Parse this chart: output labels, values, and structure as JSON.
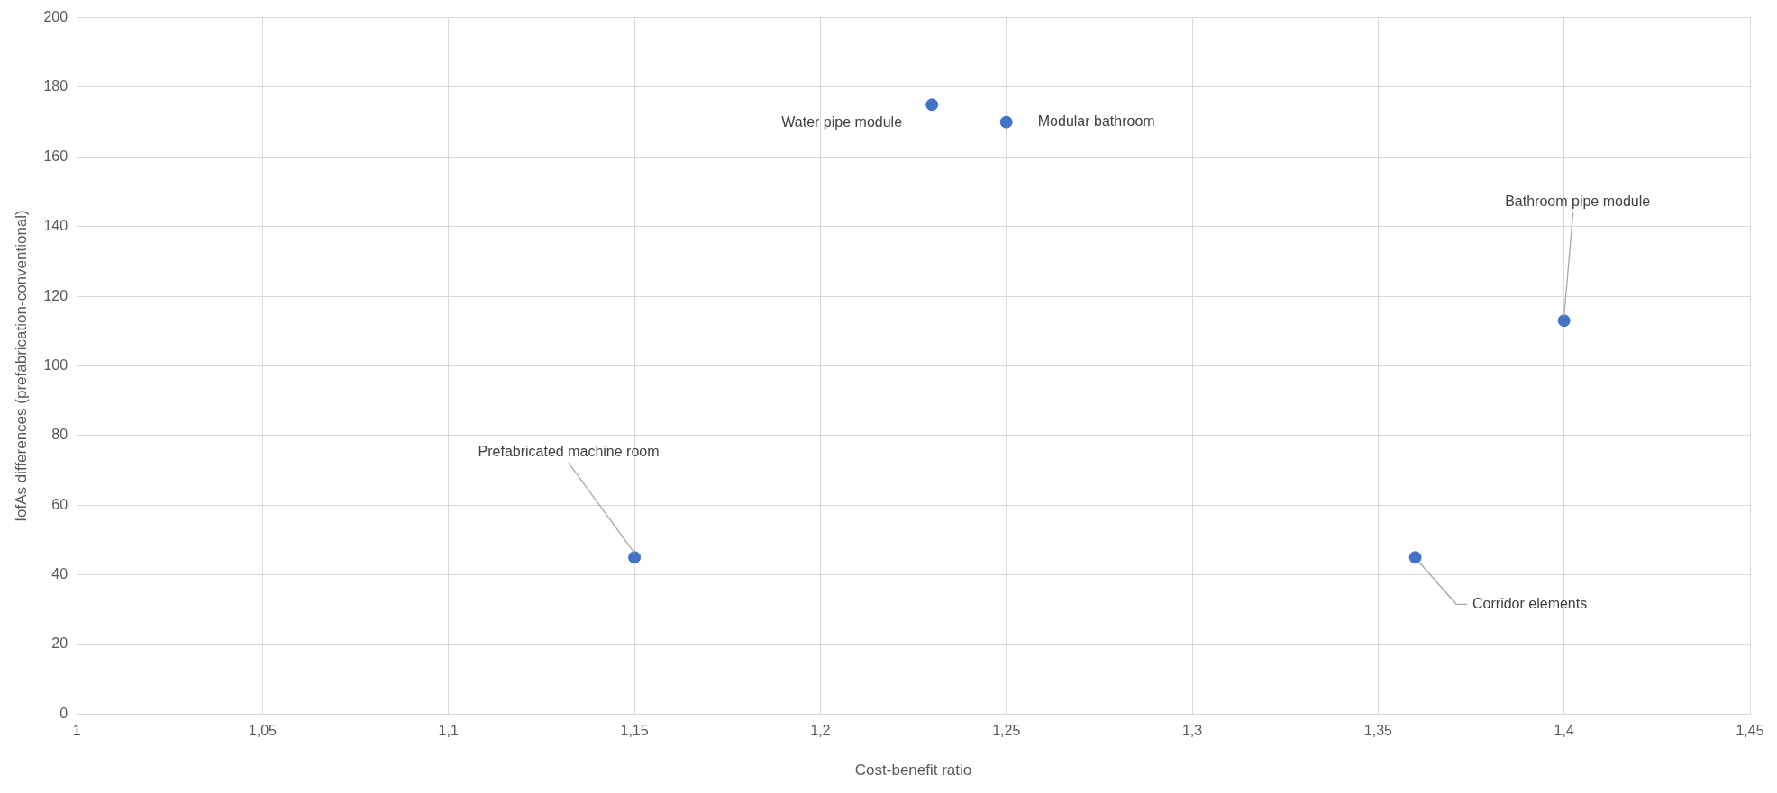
{
  "chart_data": {
    "type": "scatter",
    "xlabel": "Cost-benefit ratio",
    "ylabel": "IofAs differences (prefabrication-conventional)",
    "x": [
      1.15,
      1.23,
      1.25,
      1.36,
      1.4
    ],
    "values": [
      45,
      175,
      170,
      45,
      113
    ],
    "color": "#4472c4",
    "marker": "circle",
    "xlim": [
      1,
      1.45
    ],
    "xticks": [
      1,
      {
        "value": 1.05,
        "label": "1,05"
      },
      {
        "value": 1.1,
        "label": "1,1"
      },
      {
        "value": 1.15,
        "label": "1,15"
      },
      {
        "value": 1.2,
        "label": "1,2"
      },
      {
        "value": 1.25,
        "label": "1,25"
      },
      {
        "value": 1.3,
        "label": "1,3"
      },
      {
        "value": 1.35,
        "label": "1,35"
      },
      {
        "value": 1.4,
        "label": "1,4"
      },
      {
        "value": 1.45,
        "label": "1,45"
      }
    ],
    "ylim": [
      0,
      200
    ],
    "yticks": [
      0,
      20,
      40,
      60,
      80,
      100,
      120,
      140,
      160,
      180,
      200
    ],
    "grid": true,
    "legend": false,
    "annotations": [
      {
        "text": "Prefabricated machine room",
        "x": 1.15,
        "y": 45
      },
      {
        "text": "Water pipe module",
        "x": 1.23,
        "y": 175
      },
      {
        "text": "Modular bathroom",
        "x": 1.25,
        "y": 170
      },
      {
        "text": "Corridor elements",
        "x": 1.36,
        "y": 45
      },
      {
        "text": "Bathroom pipe module",
        "x": 1.4,
        "y": 113
      }
    ]
  }
}
